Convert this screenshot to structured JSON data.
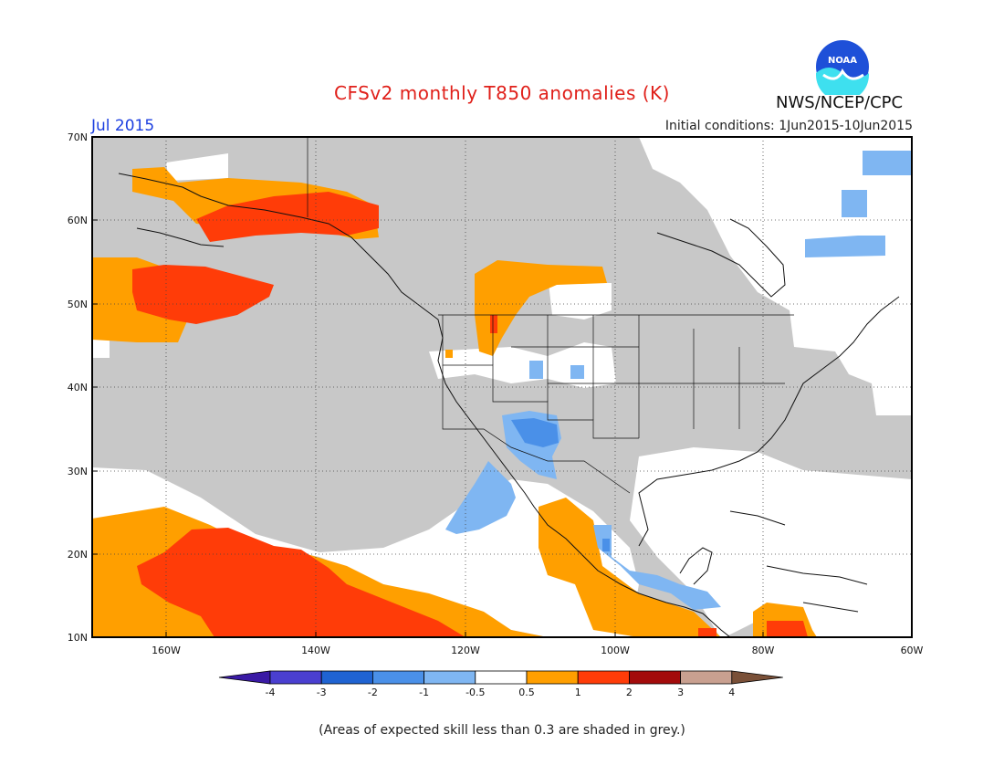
{
  "header": {
    "title": "CFSv2 monthly T850 anomalies (K)",
    "month": "Jul 2015",
    "initial_conditions": "Initial conditions: 1Jun2015-10Jun2015",
    "agency": "NWS/NCEP/CPC",
    "logo_text": "NOAA"
  },
  "footnote": "(Areas of expected skill less than 0.3 are shaded in grey.)",
  "map": {
    "lat_labels": [
      "70N",
      "60N",
      "50N",
      "40N",
      "30N",
      "20N",
      "10N"
    ],
    "lon_labels": [
      "160W",
      "140W",
      "120W",
      "100W",
      "80W",
      "60W"
    ],
    "low_skill_color": "#c8c8c8"
  },
  "colorbar": {
    "labels": [
      "-4",
      "-3",
      "-2",
      "-1",
      "-0.5",
      "0.5",
      "1",
      "2",
      "3",
      "4"
    ],
    "colors": [
      "#3a1aa5",
      "#4a3fd0",
      "#1f63d2",
      "#4a90e8",
      "#7fb6f2",
      "#ffffff",
      "#ff9f00",
      "#ff3c08",
      "#a30b0b",
      "#c9a090",
      "#7a5038"
    ]
  }
}
